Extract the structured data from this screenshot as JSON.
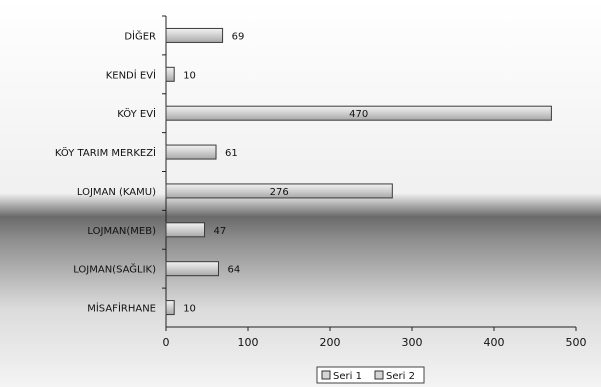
{
  "chart_data": {
    "type": "bar",
    "orientation": "horizontal",
    "categories": [
      "DİĞER",
      "KENDİ EVİ",
      "KÖY EVİ",
      "KÖY TARIM MERKEZİ",
      "LOJMAN (KAMU)",
      "LOJMAN(MEB)",
      "LOJMAN(SAĞLIK)",
      "MİSAFİRHANE"
    ],
    "values": [
      69,
      10,
      470,
      61,
      276,
      47,
      64,
      10
    ],
    "xlim": [
      0,
      500
    ],
    "xticks": [
      "0",
      "100",
      "200",
      "300",
      "400",
      "500"
    ],
    "legend": {
      "placement": "bottom",
      "entries": [
        "Seri 1",
        "Seri 2"
      ]
    },
    "colors": {
      "bar_fill": "#d6d6d6",
      "bar_stroke": "#3a3a3a",
      "plot_bg_light": "#f2f2f2",
      "plot_bg_dark": "#5a5a5a"
    }
  }
}
